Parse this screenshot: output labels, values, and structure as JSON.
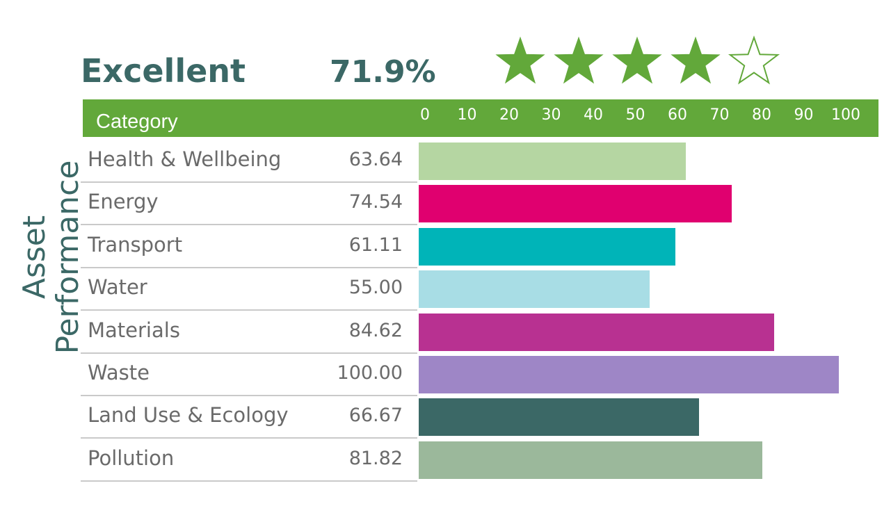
{
  "rating": {
    "label": "Excellent",
    "score": "71.9%",
    "stars": 5,
    "filled_stars": 4
  },
  "side_title": [
    "Asset",
    "Performance"
  ],
  "colors": {
    "header": "#62a83a",
    "title_text": "#3b6866",
    "star": "#62a83a"
  },
  "chart_data": {
    "type": "bar",
    "orientation": "horizontal",
    "category_header": "Category",
    "ticks": [
      "0",
      "10",
      "20",
      "30",
      "40",
      "50",
      "60",
      "70",
      "80",
      "90",
      "100"
    ],
    "xlim": [
      0,
      100
    ],
    "categories": [
      "Health & Wellbeing",
      "Energy",
      "Transport",
      "Water",
      "Materials",
      "Waste",
      "Land Use & Ecology",
      "Pollution"
    ],
    "value_labels": [
      "63.64",
      "74.54",
      "61.11",
      "55.00",
      "84.62",
      "100.00",
      "66.67",
      "81.82"
    ],
    "values": [
      63.64,
      74.54,
      61.11,
      55.0,
      84.62,
      100.0,
      66.67,
      81.82
    ],
    "bar_colors": [
      "#b5d6a2",
      "#e0006f",
      "#00b4b8",
      "#a8dde5",
      "#b83191",
      "#9e86c6",
      "#3b6866",
      "#9bb89b"
    ]
  }
}
